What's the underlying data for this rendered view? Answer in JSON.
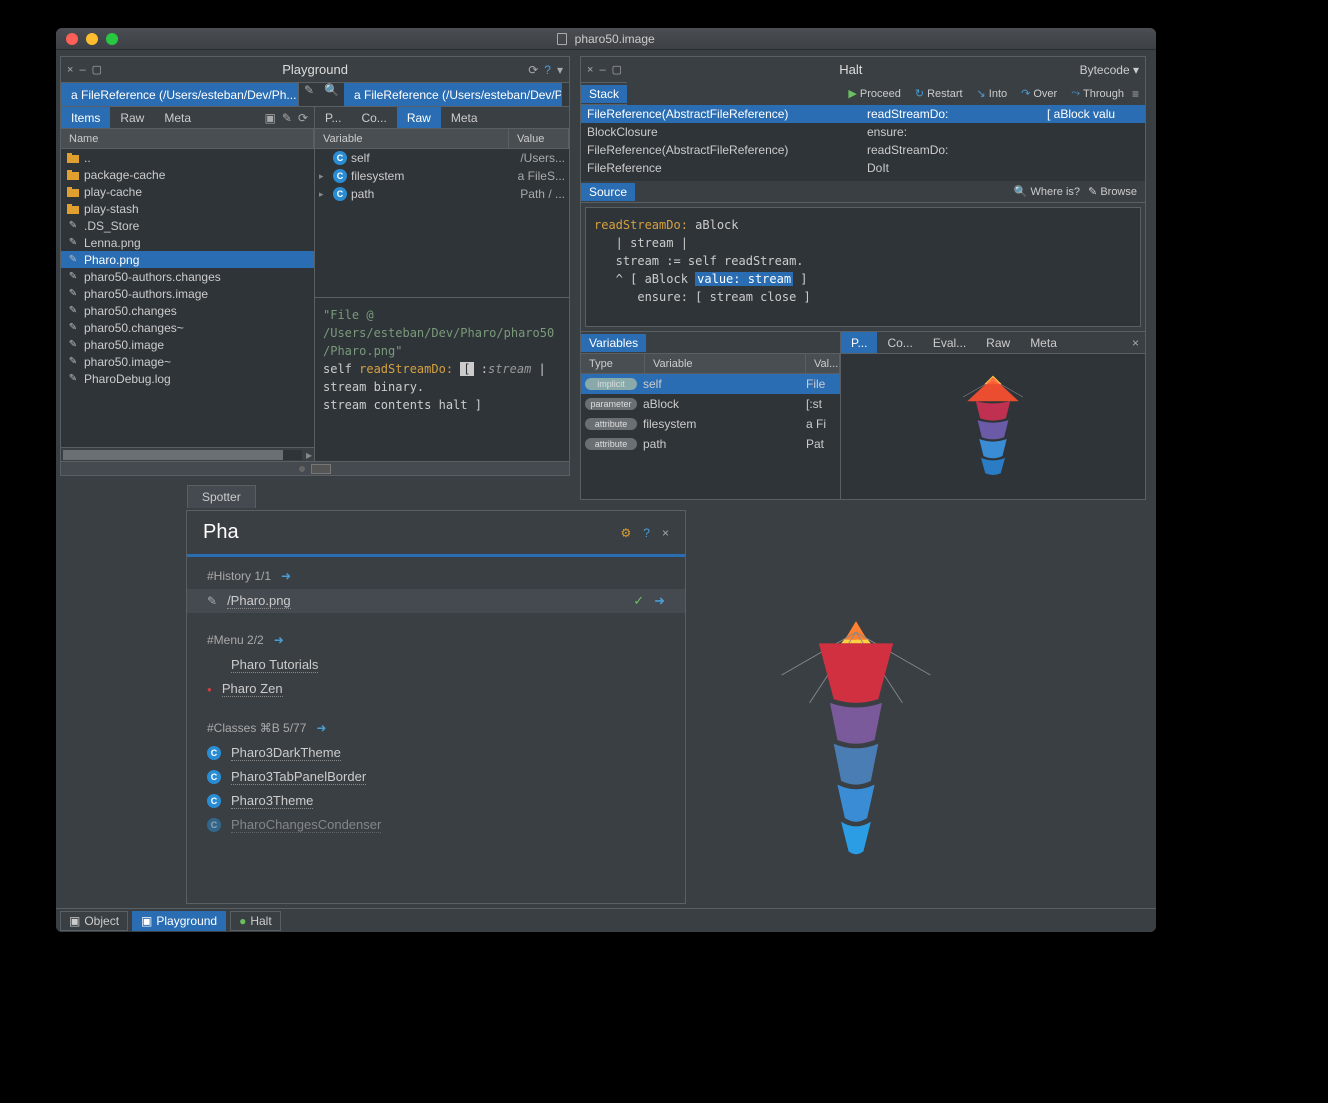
{
  "colors": {
    "bg": "#3a3f44",
    "panel": "#2f3439",
    "accent": "#2a6db3",
    "border": "#5a5f64",
    "text": "#cccccc"
  },
  "window": {
    "title": "pharo50.image"
  },
  "playground": {
    "title": "Playground",
    "tabs": {
      "left": "a FileReference (/Users/esteban/Dev/Ph...",
      "right": "a FileReference (/Users/esteban/Dev/Ph..."
    },
    "subtabs_left": [
      "Items",
      "Raw",
      "Meta"
    ],
    "subtabs_right": [
      "P...",
      "Co...",
      "Raw",
      "Meta"
    ],
    "subtabs_left_active": 0,
    "subtabs_right_active": 2,
    "name_header": "Name",
    "files": [
      {
        "name": "..",
        "type": "folder"
      },
      {
        "name": "package-cache",
        "type": "folder"
      },
      {
        "name": "play-cache",
        "type": "folder"
      },
      {
        "name": "play-stash",
        "type": "folder"
      },
      {
        "name": ".DS_Store",
        "type": "file"
      },
      {
        "name": "Lenna.png",
        "type": "file"
      },
      {
        "name": "Pharo.png",
        "type": "file",
        "selected": true
      },
      {
        "name": "pharo50-authors.changes",
        "type": "file"
      },
      {
        "name": "pharo50-authors.image",
        "type": "file"
      },
      {
        "name": "pharo50.changes",
        "type": "file"
      },
      {
        "name": "pharo50.changes~",
        "type": "file"
      },
      {
        "name": "pharo50.image",
        "type": "file"
      },
      {
        "name": "pharo50.image~",
        "type": "file"
      },
      {
        "name": "PharoDebug.log",
        "type": "file"
      }
    ],
    "var_cols": [
      "Variable",
      "Value"
    ],
    "vars": [
      {
        "name": "self",
        "value": "/Users..."
      },
      {
        "name": "filesystem",
        "value": "a FileS...",
        "expand": true
      },
      {
        "name": "path",
        "value": "Path / ...",
        "expand": true
      }
    ],
    "code_comment": "\"File @ /Users/esteban/Dev/Pharo/pharo50/Pharo.png\"",
    "code": {
      "l1_pre": "self ",
      "l1_sel": "readStreamDo:",
      "l1_post": " :",
      "l1_var": "stream",
      "l1_end": " |",
      "l2": "   stream binary.",
      "l3": "   stream contents halt ]"
    }
  },
  "halt": {
    "title": "Halt",
    "menu": "Bytecode",
    "buttons": [
      "Proceed",
      "Restart",
      "Into",
      "Over",
      "Through"
    ],
    "stack_label": "Stack",
    "stack": [
      {
        "c1": "FileReference(AbstractFileReference)",
        "c2": "readStreamDo:",
        "c3": "[ aBlock valu",
        "selected": true
      },
      {
        "c1": "BlockClosure",
        "c2": "ensure:",
        "c3": ""
      },
      {
        "c1": "FileReference(AbstractFileReference)",
        "c2": "readStreamDo:",
        "c3": ""
      },
      {
        "c1": "FileReference",
        "c2": "DoIt",
        "c3": ""
      }
    ],
    "source_label": "Source",
    "whereis": "Where is?",
    "browse": "Browse",
    "source": {
      "l1": "readStreamDo: aBlock",
      "l2": "   | stream |",
      "l3": "   stream := self readStream.",
      "l4_pre": "   ^ [ aBlock ",
      "l4_sel": "value: stream",
      "l4_post": " ]",
      "l5": "      ensure: [ stream close ]"
    },
    "vars_label": "Variables",
    "vars_cols": [
      "Type",
      "Variable",
      "Val..."
    ],
    "vars": [
      {
        "badge": "implicit",
        "name": "self",
        "val": "File",
        "sel": true
      },
      {
        "badge": "parameter",
        "name": "aBlock",
        "val": "[:st"
      },
      {
        "badge": "attribute",
        "name": "filesystem",
        "val": "a Fi"
      },
      {
        "badge": "attribute",
        "name": "path",
        "val": "Pat"
      }
    ],
    "insp_tabs": [
      "P...",
      "Co...",
      "Eval...",
      "Raw",
      "Meta"
    ],
    "insp_active": 0
  },
  "spotter": {
    "tab": "Spotter",
    "query": "Pha",
    "sections": [
      {
        "header": "#History   1/1",
        "rows": [
          {
            "text": "/Pharo.png",
            "icon": "file",
            "hl": true,
            "act": true
          }
        ]
      },
      {
        "header": "#Menu   2/2",
        "rows": [
          {
            "text": "Pharo Tutorials"
          },
          {
            "text": "Pharo Zen",
            "icon": "dot"
          }
        ]
      },
      {
        "header": "#Classes ⌘B   5/77",
        "rows": [
          {
            "text": "Pharo3DarkTheme",
            "icon": "c"
          },
          {
            "text": "Pharo3TabPanelBorder",
            "icon": "c"
          },
          {
            "text": "Pharo3Theme",
            "icon": "c"
          },
          {
            "text": "PharoChangesCondenser",
            "icon": "c",
            "cut": true
          }
        ]
      }
    ]
  },
  "taskbar": [
    {
      "label": "Object",
      "active": false
    },
    {
      "label": "Playground",
      "active": true
    },
    {
      "label": "Halt",
      "active": false
    }
  ]
}
